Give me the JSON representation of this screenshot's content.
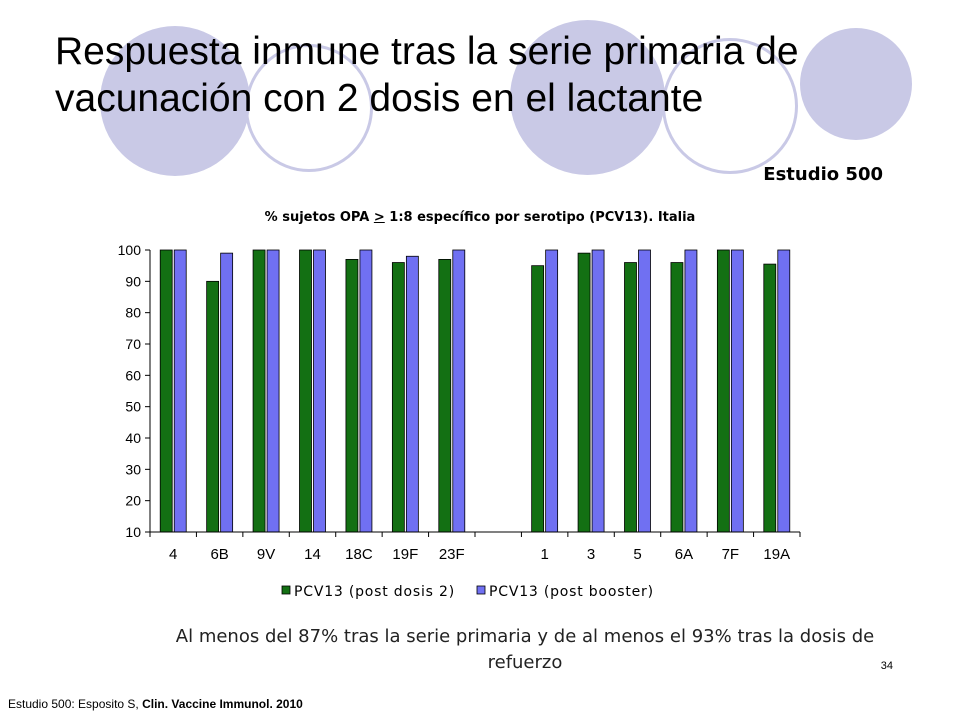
{
  "slide": {
    "title": "Respuesta inmune tras la serie primaria de vacunación con 2 dosis en el lactante",
    "study_label": "Estudio 500",
    "conclusion": "Al menos del 87%  tras la serie primaria y de al menos el 93% tras la dosis de refuerzo",
    "page_number": "34",
    "citation_prefix": "Estudio 500: Esposito S, ",
    "citation_journal": "Clin. Vaccine Immunol. 2010"
  },
  "colors": {
    "decoration": "#c9c9e6",
    "series1": "#137013",
    "series2": "#7070f2"
  },
  "chart_data": {
    "type": "bar",
    "title_part1": "% sujetos  OPA ",
    "title_underlined": ">",
    "title_part2": " 1:8 específico por serotipo (PCV13). Italia",
    "categories": [
      "4",
      "6B",
      "9V",
      "14",
      "18C",
      "19F",
      "23F",
      "",
      "1",
      "3",
      "5",
      "6A",
      "7F",
      "19A"
    ],
    "series": [
      {
        "name": "PCV13 (post dosis 2)",
        "values": [
          100,
          90,
          100,
          100,
          97,
          96,
          97,
          null,
          95,
          99,
          96,
          96,
          100,
          95.5
        ]
      },
      {
        "name": "PCV13 (post booster)",
        "values": [
          100,
          99,
          100,
          100,
          100,
          98,
          100,
          null,
          100,
          100,
          100,
          100,
          100,
          100
        ]
      }
    ],
    "ylim": [
      10,
      100
    ],
    "yticks": [
      10,
      20,
      30,
      40,
      50,
      60,
      70,
      80,
      90,
      100
    ],
    "grid": false,
    "legend_position": "bottom"
  }
}
